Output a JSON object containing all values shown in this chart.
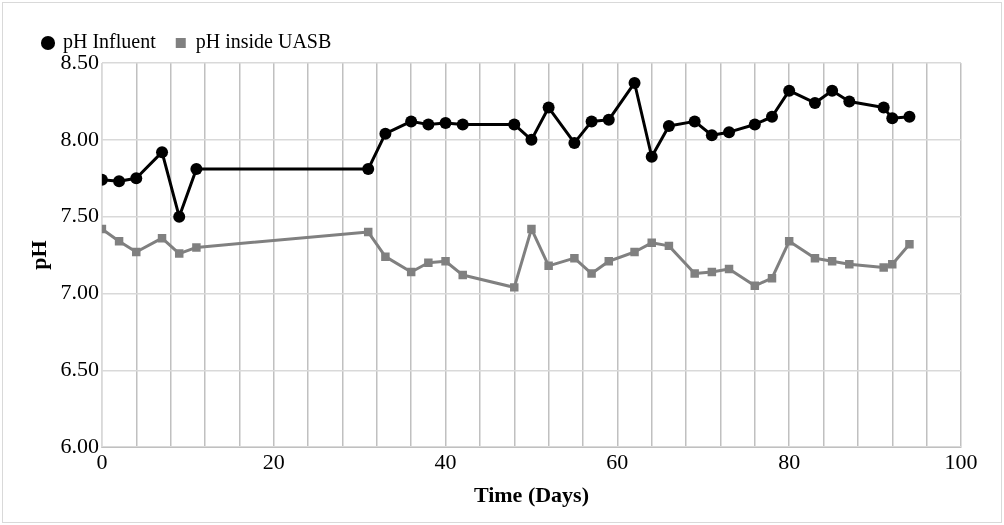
{
  "chart_data": {
    "type": "line",
    "xlabel": "Time (Days)",
    "ylabel": "pH",
    "legend": "top left",
    "grid": true,
    "line_style": "solid",
    "xlim": [
      0,
      100
    ],
    "xticks": [
      0,
      {
        "value": 4,
        "label": null
      },
      {
        "value": 8,
        "label": null
      },
      {
        "value": 12,
        "label": null
      },
      {
        "value": 16,
        "label": null
      },
      20,
      {
        "value": 24,
        "label": null
      },
      {
        "value": 28,
        "label": null
      },
      {
        "value": 32,
        "label": null
      },
      {
        "value": 36,
        "label": null
      },
      40,
      {
        "value": 44,
        "label": null
      },
      {
        "value": 48,
        "label": null
      },
      {
        "value": 52,
        "label": null
      },
      {
        "value": 56,
        "label": null
      },
      60,
      {
        "value": 64,
        "label": null
      },
      {
        "value": 68,
        "label": null
      },
      {
        "value": 72,
        "label": null
      },
      {
        "value": 76,
        "label": null
      },
      80,
      {
        "value": 84,
        "label": null
      },
      {
        "value": 88,
        "label": null
      },
      {
        "value": 92,
        "label": null
      },
      {
        "value": 96,
        "label": null
      },
      100
    ],
    "ylim": [
      6,
      8.5
    ],
    "yticks": [
      {
        "value": 6,
        "label": "6.00"
      },
      {
        "value": 6.5,
        "label": "6.50"
      },
      {
        "value": 7,
        "label": "7.00"
      },
      {
        "value": 7.5,
        "label": "7.50"
      },
      {
        "value": 8,
        "label": "8.00"
      },
      {
        "value": 8.5,
        "label": "8.50"
      }
    ],
    "series": [
      {
        "name": "pH Influent",
        "color": "#000000",
        "marker": "circle",
        "x": [
          0,
          2,
          4,
          7,
          9,
          11,
          31,
          33,
          36,
          38,
          40,
          42,
          48,
          50,
          52,
          55,
          57,
          59,
          62,
          64,
          66,
          69,
          71,
          73,
          76,
          78,
          80,
          83,
          85,
          87,
          91,
          92,
          94
        ],
        "values": [
          7.74,
          7.73,
          7.75,
          7.92,
          7.5,
          7.81,
          7.81,
          8.04,
          8.12,
          8.1,
          8.11,
          8.1,
          8.1,
          8.0,
          8.21,
          7.98,
          8.12,
          8.13,
          8.37,
          7.89,
          8.09,
          8.12,
          8.03,
          8.05,
          8.1,
          8.15,
          8.32,
          8.24,
          8.32,
          8.25,
          8.21,
          8.14,
          8.15
        ]
      },
      {
        "name": "pH inside UASB",
        "color": "#808080",
        "marker": "square",
        "x": [
          0,
          2,
          4,
          7,
          9,
          11,
          31,
          33,
          36,
          38,
          40,
          42,
          48,
          50,
          52,
          55,
          57,
          59,
          62,
          64,
          66,
          69,
          71,
          73,
          76,
          78,
          80,
          83,
          85,
          87,
          91,
          92,
          94
        ],
        "values": [
          7.42,
          7.34,
          7.27,
          7.36,
          7.26,
          7.3,
          7.4,
          7.24,
          7.14,
          7.2,
          7.21,
          7.12,
          7.04,
          7.42,
          7.18,
          7.23,
          7.13,
          7.21,
          7.27,
          7.33,
          7.31,
          7.13,
          7.14,
          7.16,
          7.05,
          7.1,
          7.34,
          7.23,
          7.21,
          7.19,
          7.17,
          7.19,
          7.32
        ]
      }
    ]
  }
}
